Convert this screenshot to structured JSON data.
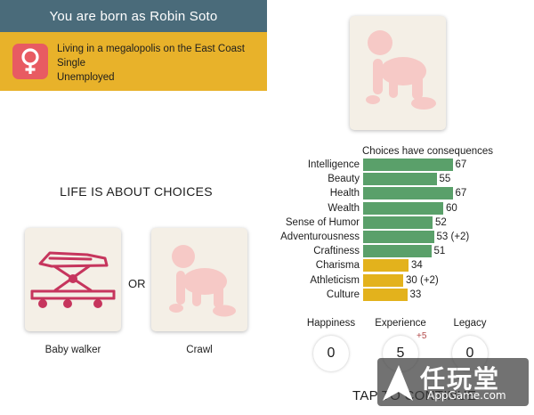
{
  "header": {
    "title": "You are born as Robin Soto"
  },
  "profile": {
    "gender_icon": "female-symbol-icon",
    "lines": [
      "Living in a megalopolis on the East Coast",
      "Single",
      "Unemployed"
    ]
  },
  "prompt": {
    "title": "LIFE IS ABOUT CHOICES",
    "or_label": "OR"
  },
  "choices": [
    {
      "label": "Baby walker",
      "icon": "baby-walker-icon"
    },
    {
      "label": "Crawl",
      "icon": "crawling-baby-icon"
    }
  ],
  "current_stage_icon": "crawling-baby-icon",
  "chart_data": {
    "type": "bar",
    "title": "Choices have consequences",
    "categories": [
      "Intelligence",
      "Beauty",
      "Health",
      "Wealth",
      "Sense of Humor",
      "Adventurousness",
      "Craftiness",
      "Charisma",
      "Athleticism",
      "Culture"
    ],
    "values": [
      67,
      55,
      67,
      60,
      52,
      53,
      51,
      34,
      30,
      33
    ],
    "value_labels": [
      "67",
      "55",
      "67",
      "60",
      "52",
      "53 (+2)",
      "51",
      "34",
      "30 (+2)",
      "33"
    ],
    "high_color": "#5aa06a",
    "low_color": "#e3b21c"
  },
  "meters": [
    {
      "label": "Happiness",
      "value": "0"
    },
    {
      "label": "Experience",
      "value": "5",
      "bonus": "+5"
    },
    {
      "label": "Legacy",
      "value": "0"
    }
  ],
  "footer": {
    "tap_label": "TAP TO CONTINUE"
  },
  "watermark": {
    "text": "任玩堂",
    "url": "AppGame.com"
  }
}
